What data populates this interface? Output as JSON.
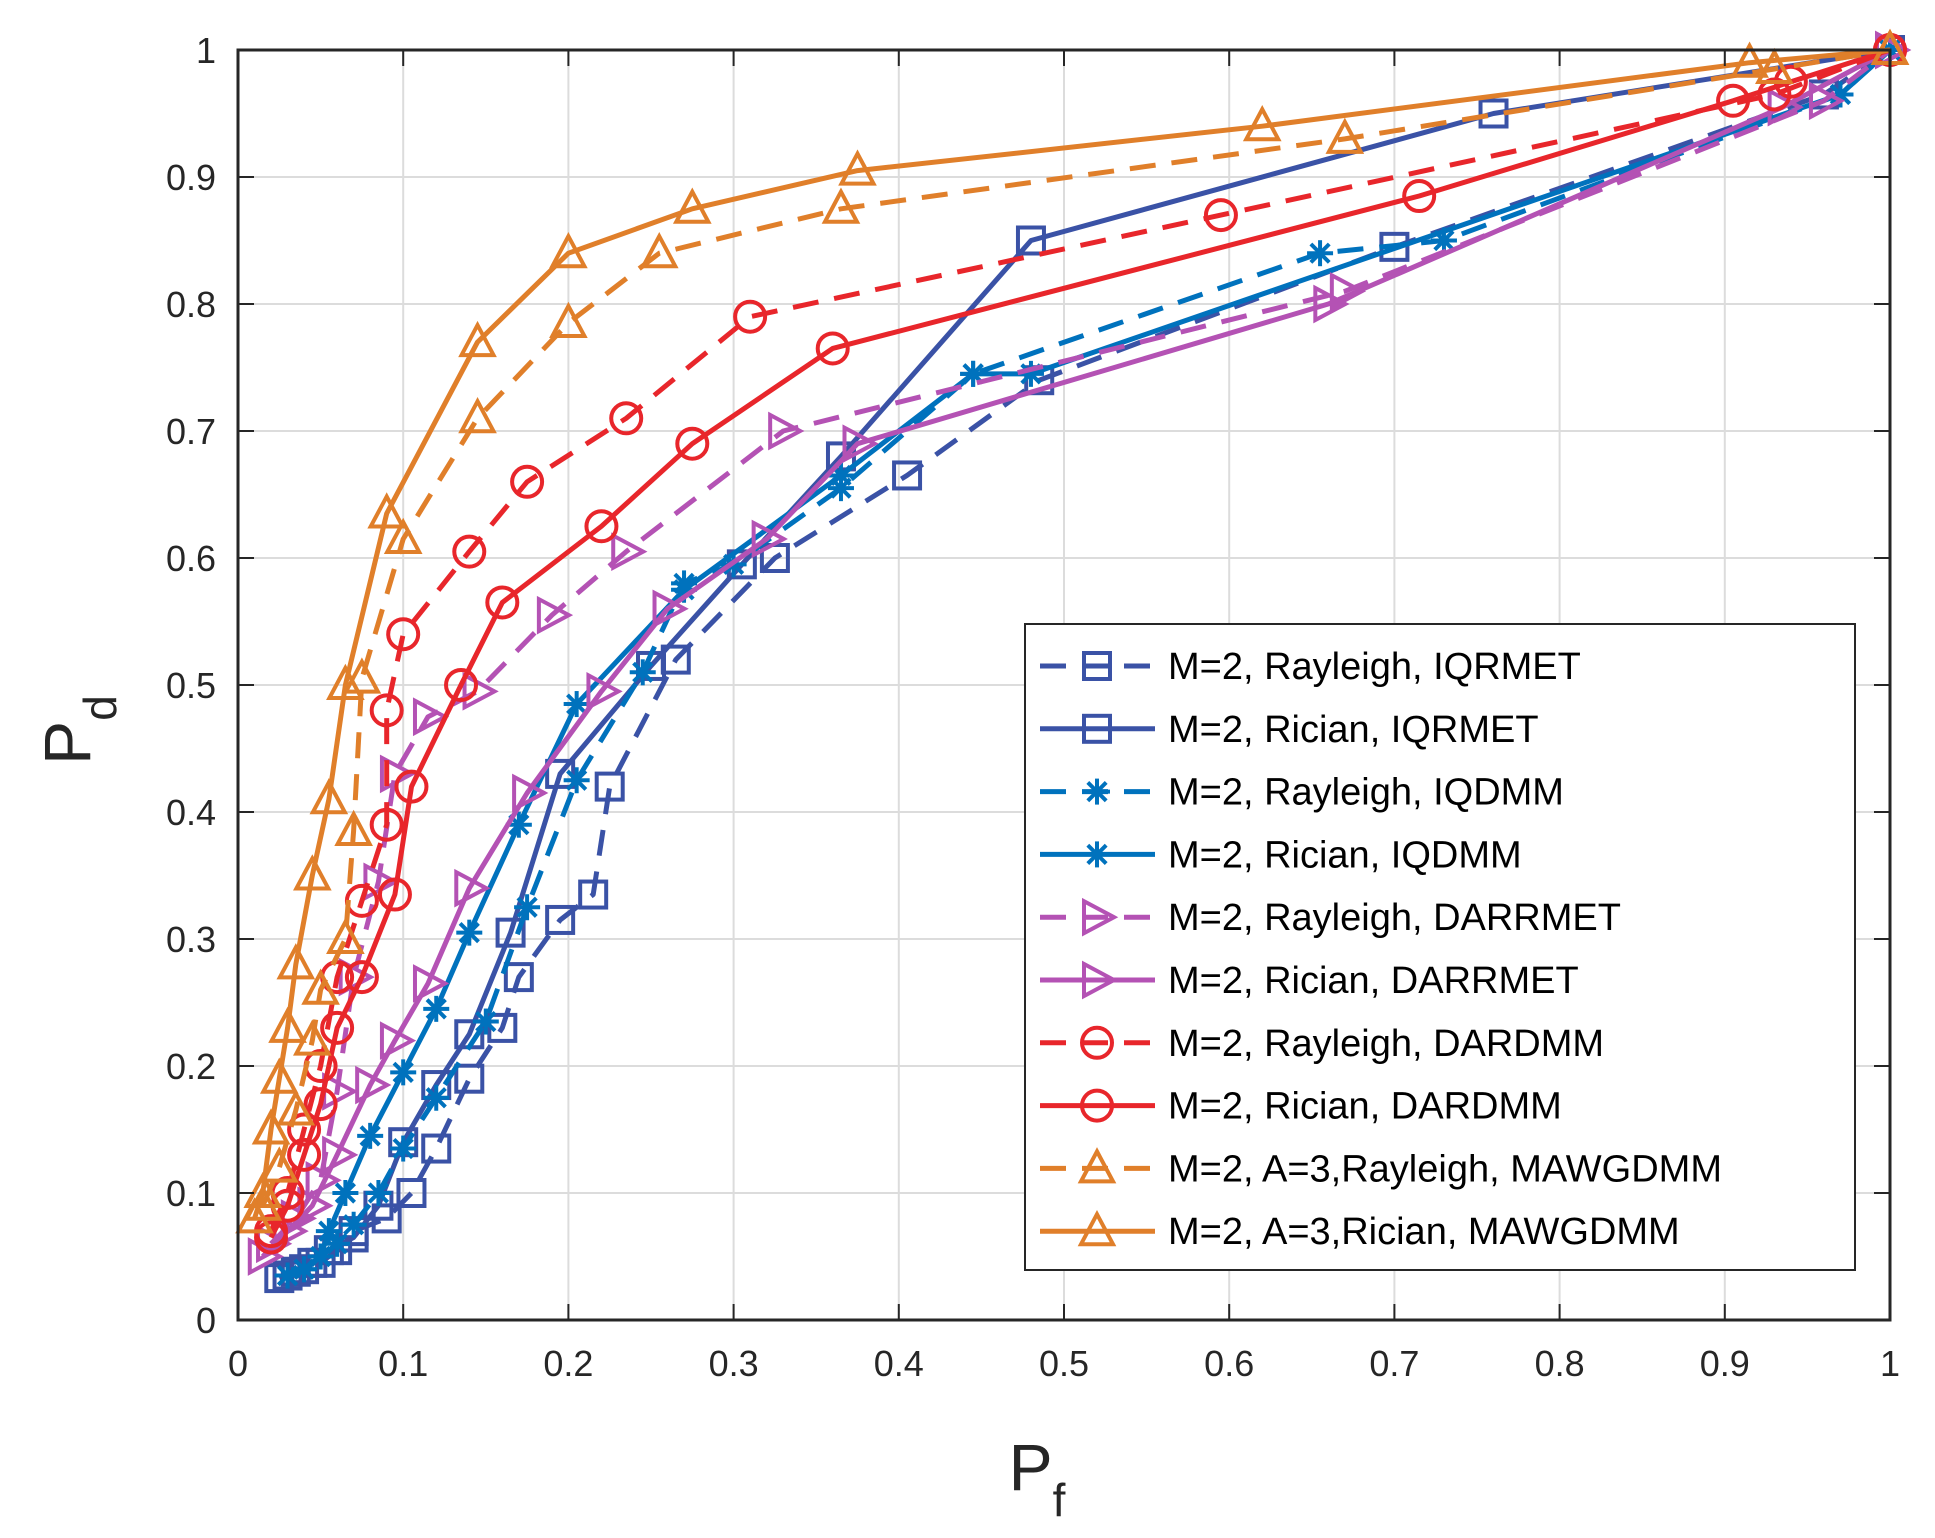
{
  "chart_data": {
    "type": "line",
    "title": "",
    "xlabel": {
      "main": "P",
      "sub": "f"
    },
    "ylabel": {
      "main": "P",
      "sub": "d"
    },
    "xlim": [
      0,
      1
    ],
    "ylim": [
      0,
      1
    ],
    "grid": true,
    "legend_position": "bottom-right",
    "xticks": [
      "0",
      "0.1",
      "0.2",
      "0.3",
      "0.4",
      "0.5",
      "0.6",
      "0.7",
      "0.8",
      "0.9",
      "1"
    ],
    "yticks": [
      "0",
      "0.1",
      "0.2",
      "0.3",
      "0.4",
      "0.5",
      "0.6",
      "0.7",
      "0.8",
      "0.9",
      "1"
    ],
    "series": [
      {
        "name": "M=2, Rayleigh, IQRMET",
        "color": "#3a52a6",
        "dash": "dashed",
        "marker": "square",
        "x": [
          0.03,
          0.04,
          0.05,
          0.06,
          0.07,
          0.09,
          0.105,
          0.12,
          0.14,
          0.16,
          0.17,
          0.195,
          0.215,
          0.225,
          0.265,
          0.325,
          0.405,
          0.485,
          0.7,
          0.96,
          1.0
        ],
        "y": [
          0.035,
          0.04,
          0.045,
          0.055,
          0.07,
          0.08,
          0.1,
          0.135,
          0.19,
          0.23,
          0.27,
          0.315,
          0.335,
          0.42,
          0.52,
          0.6,
          0.665,
          0.74,
          0.845,
          0.965,
          1.0
        ]
      },
      {
        "name": "M=2, Rician, IQRMET",
        "color": "#3a52a6",
        "dash": "solid",
        "marker": "square",
        "x": [
          0.025,
          0.035,
          0.045,
          0.055,
          0.07,
          0.085,
          0.1,
          0.12,
          0.14,
          0.165,
          0.195,
          0.25,
          0.305,
          0.365,
          0.48,
          0.76,
          1.0
        ],
        "y": [
          0.033,
          0.038,
          0.045,
          0.055,
          0.065,
          0.09,
          0.14,
          0.185,
          0.225,
          0.305,
          0.43,
          0.515,
          0.595,
          0.68,
          0.85,
          0.95,
          1.0
        ],
        "y_note": "paired values"
      },
      {
        "name": "M=2, Rayleigh, IQDMM",
        "color": "#0072bd",
        "dash": "dashed",
        "marker": "asterisk",
        "x": [
          0.03,
          0.04,
          0.05,
          0.06,
          0.07,
          0.085,
          0.1,
          0.12,
          0.15,
          0.175,
          0.205,
          0.245,
          0.27,
          0.3,
          0.365,
          0.445,
          0.655,
          0.73,
          0.97,
          1.0
        ],
        "y": [
          0.035,
          0.04,
          0.05,
          0.06,
          0.075,
          0.1,
          0.135,
          0.175,
          0.235,
          0.325,
          0.425,
          0.51,
          0.58,
          0.595,
          0.655,
          0.745,
          0.84,
          0.85,
          0.965,
          1.0
        ]
      },
      {
        "name": "M=2, Rician, IQDMM",
        "color": "#0072bd",
        "dash": "solid",
        "marker": "asterisk",
        "x": [
          0.03,
          0.04,
          0.05,
          0.055,
          0.065,
          0.08,
          0.1,
          0.12,
          0.14,
          0.17,
          0.205,
          0.27,
          0.365,
          0.445,
          0.48,
          0.97,
          1.0
        ],
        "y": [
          0.035,
          0.04,
          0.05,
          0.07,
          0.1,
          0.145,
          0.195,
          0.245,
          0.305,
          0.39,
          0.485,
          0.575,
          0.665,
          0.745,
          0.745,
          0.965,
          1.0
        ]
      },
      {
        "name": "M=2, Rayleigh, DARRMET",
        "color": "#b452b4",
        "dash": "dashed",
        "marker": "triangle-right",
        "x": [
          0.02,
          0.035,
          0.05,
          0.06,
          0.07,
          0.085,
          0.095,
          0.115,
          0.145,
          0.19,
          0.235,
          0.33,
          0.67,
          0.96,
          1.0
        ],
        "y": [
          0.06,
          0.08,
          0.11,
          0.18,
          0.27,
          0.345,
          0.43,
          0.475,
          0.495,
          0.555,
          0.605,
          0.7,
          0.81,
          0.96,
          1.0
        ],
        "y_note": "paired values"
      },
      {
        "name": "M=2, Rician, DARRMET",
        "color": "#b452b4",
        "dash": "solid",
        "marker": "triangle-right",
        "x": [
          0.015,
          0.03,
          0.045,
          0.06,
          0.08,
          0.095,
          0.115,
          0.14,
          0.175,
          0.22,
          0.26,
          0.32,
          0.375,
          0.66,
          0.935,
          1.0
        ],
        "y": [
          0.05,
          0.07,
          0.09,
          0.13,
          0.185,
          0.22,
          0.265,
          0.34,
          0.415,
          0.495,
          0.56,
          0.615,
          0.69,
          0.8,
          0.955,
          1.0
        ]
      },
      {
        "name": "M=2, Rayleigh, DARDMM",
        "color": "#e8262b",
        "dash": "dashed",
        "marker": "circle",
        "x": [
          0.02,
          0.03,
          0.04,
          0.05,
          0.06,
          0.075,
          0.09,
          0.09,
          0.1,
          0.14,
          0.175,
          0.235,
          0.31,
          0.595,
          0.93,
          1.0
        ],
        "y": [
          0.07,
          0.1,
          0.15,
          0.2,
          0.27,
          0.33,
          0.39,
          0.48,
          0.54,
          0.605,
          0.66,
          0.71,
          0.79,
          0.87,
          0.965,
          1.0
        ]
      },
      {
        "name": "M=2, Rician, DARDMM",
        "color": "#e8262b",
        "dash": "solid",
        "marker": "circle",
        "x": [
          0.02,
          0.03,
          0.04,
          0.05,
          0.06,
          0.075,
          0.095,
          0.105,
          0.135,
          0.16,
          0.22,
          0.275,
          0.36,
          0.715,
          0.905,
          0.94,
          1.0
        ],
        "y": [
          0.065,
          0.09,
          0.13,
          0.17,
          0.23,
          0.27,
          0.335,
          0.42,
          0.5,
          0.565,
          0.625,
          0.69,
          0.765,
          0.885,
          0.96,
          0.975,
          1.0
        ]
      },
      {
        "name": "M=2, A=3,Rayleigh, MAWGDMM",
        "color": "#e07f2a",
        "dash": "dashed",
        "marker": "triangle-up",
        "x": [
          0.015,
          0.025,
          0.035,
          0.045,
          0.05,
          0.065,
          0.07,
          0.075,
          0.1,
          0.145,
          0.2,
          0.255,
          0.365,
          0.67,
          0.93,
          1.0
        ],
        "y": [
          0.09,
          0.12,
          0.165,
          0.22,
          0.26,
          0.3,
          0.385,
          0.505,
          0.615,
          0.71,
          0.785,
          0.84,
          0.875,
          0.93,
          0.985,
          1.0
        ]
      },
      {
        "name": "M=2, A=3,Rician, MAWGDMM",
        "color": "#e07f2a",
        "dash": "solid",
        "marker": "triangle-up",
        "x": [
          0.01,
          0.015,
          0.02,
          0.025,
          0.03,
          0.035,
          0.045,
          0.055,
          0.065,
          0.09,
          0.145,
          0.2,
          0.275,
          0.375,
          0.62,
          0.915,
          1.0
        ],
        "y": [
          0.08,
          0.1,
          0.15,
          0.19,
          0.23,
          0.28,
          0.35,
          0.41,
          0.5,
          0.635,
          0.77,
          0.84,
          0.875,
          0.905,
          0.94,
          0.99,
          1.0
        ]
      }
    ]
  }
}
